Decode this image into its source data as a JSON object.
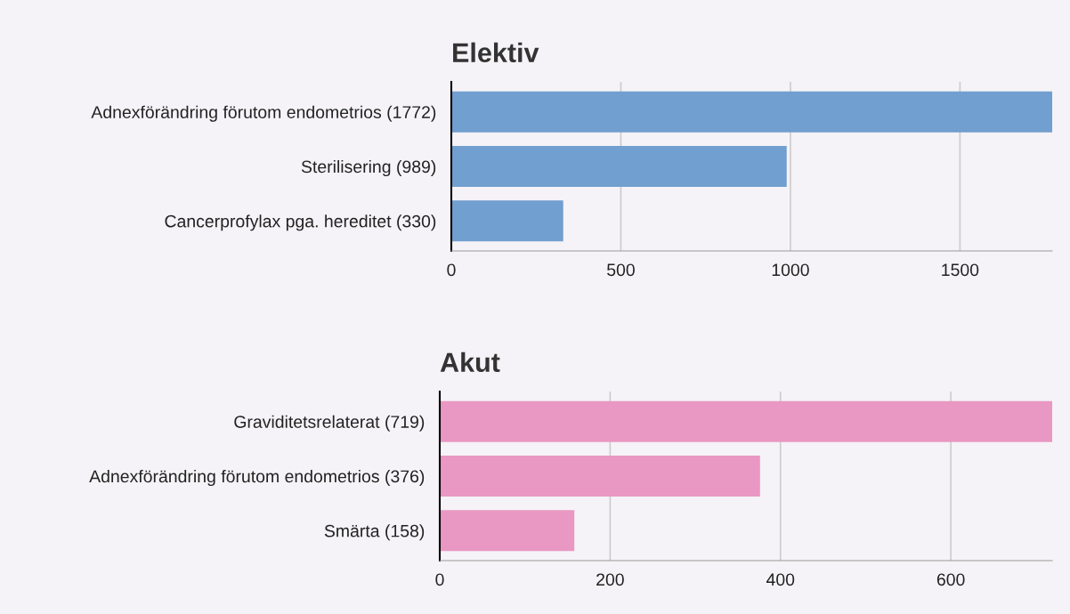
{
  "chart_data": [
    {
      "type": "bar",
      "title": "Elektiv",
      "orientation": "horizontal",
      "categories": [
        "Adnexförändring förutom endometrios (1772)",
        "Sterilisering (989)",
        "Cancerprofylax pga. hereditet (330)"
      ],
      "series": [
        {
          "color": "#719fcf",
          "values": [
            1772,
            989,
            330
          ]
        }
      ],
      "xlim": [
        0,
        1772
      ],
      "xticks": [
        0,
        500,
        1000,
        1500
      ],
      "grid": "x"
    },
    {
      "type": "bar",
      "title": "Akut",
      "orientation": "horizontal",
      "categories": [
        "Graviditetsrelaterat (719)",
        "Adnexförändring förutom endometrios (376)",
        "Smärta (158)"
      ],
      "series": [
        {
          "color": "#e997c3",
          "values": [
            719,
            376,
            158
          ]
        }
      ],
      "xlim": [
        0,
        719
      ],
      "xticks": [
        0,
        200,
        400,
        600
      ],
      "grid": "x"
    }
  ]
}
